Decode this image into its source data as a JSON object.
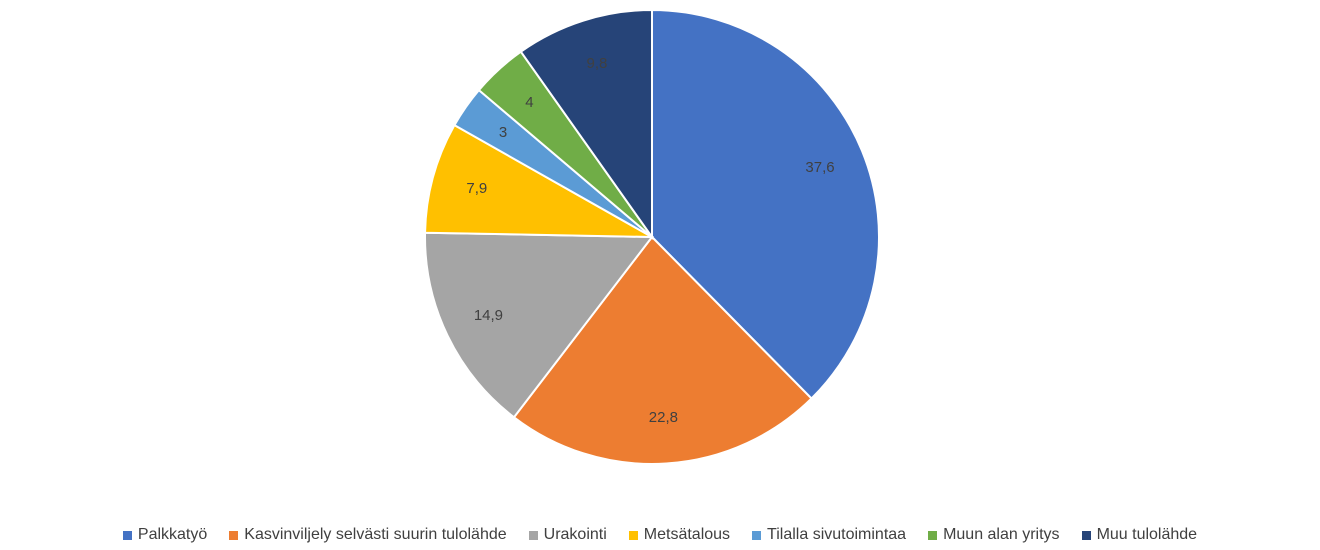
{
  "chart_data": {
    "type": "pie",
    "categories": [
      "Palkkatyö",
      "Kasvinviljely selvästi suurin tulolähde",
      "Urakointi",
      "Metsätalous",
      "Tilalla sivutoimintaa",
      "Muun alan yritys",
      "Muu tulolähde"
    ],
    "values": [
      37.6,
      22.8,
      14.9,
      7.9,
      3,
      4,
      9.8
    ],
    "value_labels": [
      "37,6",
      "22,8",
      "14,9",
      "7,9",
      "3",
      "4",
      "9,8"
    ],
    "colors": [
      "#4472c4",
      "#ed7d31",
      "#a5a5a5",
      "#ffc000",
      "#5b9bd5",
      "#70ad47",
      "#264478"
    ],
    "legend": "bottom"
  }
}
